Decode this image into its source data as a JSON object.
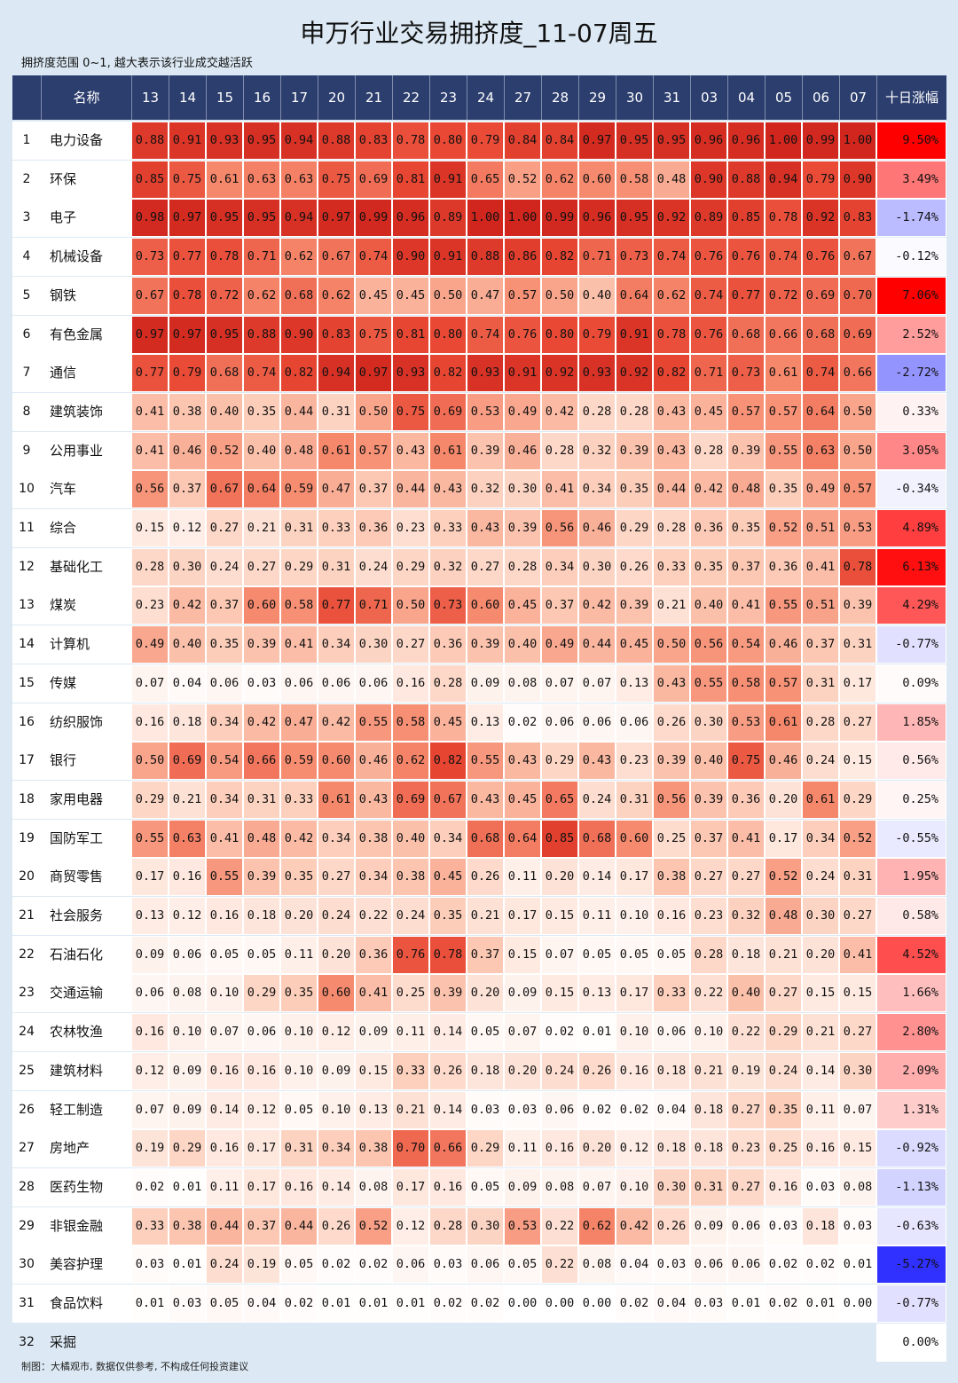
{
  "title": "申万行业交易拥挤度_11-07周五",
  "subtitle": "拥挤度范围 0~1, 越大表示该行业成交越活跃",
  "footer": "制图：大橘观市, 数据仅供参考, 不构成任何投资建议",
  "colors": {
    "header_bg": "#2c3e6e",
    "page_bg": "#dce9f4",
    "heat_high": "#d7301f",
    "heat_low": "#ffffff",
    "change_positive": "#ff0000",
    "change_negative": "#0000ff"
  },
  "chart_data": {
    "type": "heatmap",
    "title": "申万行业交易拥挤度_11-07周五",
    "subtitle": "拥挤度范围 0~1, 越大表示该行业成交越活跃",
    "name_header": "名称",
    "change_header": "十日涨幅",
    "value_range": [
      0,
      1
    ],
    "columns": [
      "13",
      "14",
      "15",
      "16",
      "17",
      "20",
      "21",
      "22",
      "23",
      "24",
      "27",
      "28",
      "29",
      "30",
      "31",
      "03",
      "04",
      "05",
      "06",
      "07"
    ],
    "rows": [
      {
        "rank": "1",
        "name": "电力设备",
        "values": [
          0.88,
          0.91,
          0.93,
          0.95,
          0.94,
          0.88,
          0.83,
          0.78,
          0.8,
          0.79,
          0.84,
          0.84,
          0.97,
          0.95,
          0.95,
          0.96,
          0.96,
          1.0,
          0.99,
          1.0
        ],
        "change": "9.50%"
      },
      {
        "rank": "2",
        "name": "环保",
        "values": [
          0.85,
          0.75,
          0.61,
          0.63,
          0.63,
          0.75,
          0.69,
          0.81,
          0.91,
          0.65,
          0.52,
          0.62,
          0.6,
          0.58,
          0.48,
          0.9,
          0.88,
          0.94,
          0.79,
          0.9
        ],
        "change": "3.49%"
      },
      {
        "rank": "3",
        "name": "电子",
        "values": [
          0.98,
          0.97,
          0.95,
          0.95,
          0.94,
          0.97,
          0.99,
          0.96,
          0.89,
          1.0,
          1.0,
          0.99,
          0.96,
          0.95,
          0.92,
          0.89,
          0.85,
          0.78,
          0.92,
          0.83
        ],
        "change": "-1.74%"
      },
      {
        "rank": "4",
        "name": "机械设备",
        "values": [
          0.73,
          0.77,
          0.78,
          0.71,
          0.62,
          0.67,
          0.74,
          0.9,
          0.91,
          0.88,
          0.86,
          0.82,
          0.71,
          0.73,
          0.74,
          0.76,
          0.76,
          0.74,
          0.76,
          0.67
        ],
        "change": "-0.12%"
      },
      {
        "rank": "5",
        "name": "钢铁",
        "values": [
          0.67,
          0.78,
          0.72,
          0.62,
          0.68,
          0.62,
          0.45,
          0.45,
          0.5,
          0.47,
          0.57,
          0.5,
          0.4,
          0.64,
          0.62,
          0.74,
          0.77,
          0.72,
          0.69,
          0.7
        ],
        "change": "7.06%"
      },
      {
        "rank": "6",
        "name": "有色金属",
        "values": [
          0.97,
          0.97,
          0.95,
          0.88,
          0.9,
          0.83,
          0.75,
          0.81,
          0.8,
          0.74,
          0.76,
          0.8,
          0.79,
          0.91,
          0.78,
          0.76,
          0.68,
          0.66,
          0.68,
          0.69
        ],
        "change": "2.52%"
      },
      {
        "rank": "7",
        "name": "通信",
        "values": [
          0.77,
          0.79,
          0.68,
          0.74,
          0.82,
          0.94,
          0.97,
          0.93,
          0.82,
          0.93,
          0.91,
          0.92,
          0.93,
          0.92,
          0.82,
          0.71,
          0.73,
          0.61,
          0.74,
          0.66
        ],
        "change": "-2.72%"
      },
      {
        "rank": "8",
        "name": "建筑装饰",
        "values": [
          0.41,
          0.38,
          0.4,
          0.35,
          0.44,
          0.31,
          0.5,
          0.75,
          0.69,
          0.53,
          0.49,
          0.42,
          0.28,
          0.28,
          0.43,
          0.45,
          0.57,
          0.57,
          0.64,
          0.5
        ],
        "change": "0.33%"
      },
      {
        "rank": "9",
        "name": "公用事业",
        "values": [
          0.41,
          0.46,
          0.52,
          0.4,
          0.48,
          0.61,
          0.57,
          0.43,
          0.61,
          0.39,
          0.46,
          0.28,
          0.32,
          0.39,
          0.43,
          0.28,
          0.39,
          0.55,
          0.63,
          0.5
        ],
        "change": "3.05%"
      },
      {
        "rank": "10",
        "name": "汽车",
        "values": [
          0.56,
          0.37,
          0.67,
          0.64,
          0.59,
          0.47,
          0.37,
          0.44,
          0.43,
          0.32,
          0.3,
          0.41,
          0.34,
          0.35,
          0.44,
          0.42,
          0.48,
          0.35,
          0.49,
          0.57
        ],
        "change": "-0.34%"
      },
      {
        "rank": "11",
        "name": "综合",
        "values": [
          0.15,
          0.12,
          0.27,
          0.21,
          0.31,
          0.33,
          0.36,
          0.23,
          0.33,
          0.43,
          0.39,
          0.56,
          0.46,
          0.29,
          0.28,
          0.36,
          0.35,
          0.52,
          0.51,
          0.53
        ],
        "change": "4.89%"
      },
      {
        "rank": "12",
        "name": "基础化工",
        "values": [
          0.28,
          0.3,
          0.24,
          0.27,
          0.29,
          0.31,
          0.24,
          0.29,
          0.32,
          0.27,
          0.28,
          0.34,
          0.3,
          0.26,
          0.33,
          0.35,
          0.37,
          0.36,
          0.41,
          0.78
        ],
        "change": "6.13%"
      },
      {
        "rank": "13",
        "name": "煤炭",
        "values": [
          0.23,
          0.42,
          0.37,
          0.6,
          0.58,
          0.77,
          0.71,
          0.5,
          0.73,
          0.6,
          0.45,
          0.37,
          0.42,
          0.39,
          0.21,
          0.4,
          0.41,
          0.55,
          0.51,
          0.39
        ],
        "change": "4.29%"
      },
      {
        "rank": "14",
        "name": "计算机",
        "values": [
          0.49,
          0.4,
          0.35,
          0.39,
          0.41,
          0.34,
          0.3,
          0.27,
          0.36,
          0.39,
          0.4,
          0.49,
          0.44,
          0.45,
          0.5,
          0.56,
          0.54,
          0.46,
          0.37,
          0.31
        ],
        "change": "-0.77%"
      },
      {
        "rank": "15",
        "name": "传媒",
        "values": [
          0.07,
          0.04,
          0.06,
          0.03,
          0.06,
          0.06,
          0.06,
          0.16,
          0.28,
          0.09,
          0.08,
          0.07,
          0.07,
          0.13,
          0.43,
          0.55,
          0.58,
          0.57,
          0.31,
          0.17
        ],
        "change": "0.09%"
      },
      {
        "rank": "16",
        "name": "纺织服饰",
        "values": [
          0.16,
          0.18,
          0.34,
          0.42,
          0.47,
          0.42,
          0.55,
          0.58,
          0.45,
          0.13,
          0.02,
          0.06,
          0.06,
          0.06,
          0.26,
          0.3,
          0.53,
          0.61,
          0.28,
          0.27
        ],
        "change": "1.85%"
      },
      {
        "rank": "17",
        "name": "银行",
        "values": [
          0.5,
          0.69,
          0.54,
          0.66,
          0.59,
          0.6,
          0.46,
          0.62,
          0.82,
          0.55,
          0.43,
          0.29,
          0.43,
          0.23,
          0.39,
          0.4,
          0.75,
          0.46,
          0.24,
          0.15
        ],
        "change": "0.56%"
      },
      {
        "rank": "18",
        "name": "家用电器",
        "values": [
          0.29,
          0.21,
          0.34,
          0.31,
          0.33,
          0.61,
          0.43,
          0.69,
          0.67,
          0.43,
          0.45,
          0.65,
          0.24,
          0.31,
          0.56,
          0.39,
          0.36,
          0.2,
          0.61,
          0.29
        ],
        "change": "0.25%"
      },
      {
        "rank": "19",
        "name": "国防军工",
        "values": [
          0.55,
          0.63,
          0.41,
          0.48,
          0.42,
          0.34,
          0.38,
          0.4,
          0.34,
          0.68,
          0.64,
          0.85,
          0.68,
          0.6,
          0.25,
          0.37,
          0.41,
          0.17,
          0.34,
          0.52
        ],
        "change": "-0.55%"
      },
      {
        "rank": "20",
        "name": "商贸零售",
        "values": [
          0.17,
          0.16,
          0.55,
          0.39,
          0.35,
          0.27,
          0.34,
          0.38,
          0.45,
          0.26,
          0.11,
          0.2,
          0.14,
          0.17,
          0.38,
          0.27,
          0.27,
          0.52,
          0.24,
          0.31
        ],
        "change": "1.95%"
      },
      {
        "rank": "21",
        "name": "社会服务",
        "values": [
          0.13,
          0.12,
          0.16,
          0.18,
          0.2,
          0.24,
          0.22,
          0.24,
          0.35,
          0.21,
          0.17,
          0.15,
          0.11,
          0.1,
          0.16,
          0.23,
          0.32,
          0.48,
          0.3,
          0.27
        ],
        "change": "0.58%"
      },
      {
        "rank": "22",
        "name": "石油石化",
        "values": [
          0.09,
          0.06,
          0.05,
          0.05,
          0.11,
          0.2,
          0.36,
          0.76,
          0.78,
          0.37,
          0.15,
          0.07,
          0.05,
          0.05,
          0.05,
          0.28,
          0.18,
          0.21,
          0.2,
          0.41
        ],
        "change": "4.52%"
      },
      {
        "rank": "23",
        "name": "交通运输",
        "values": [
          0.06,
          0.08,
          0.1,
          0.29,
          0.35,
          0.6,
          0.41,
          0.25,
          0.39,
          0.2,
          0.09,
          0.15,
          0.13,
          0.17,
          0.33,
          0.22,
          0.4,
          0.27,
          0.15,
          0.15
        ],
        "change": "1.66%"
      },
      {
        "rank": "24",
        "name": "农林牧渔",
        "values": [
          0.16,
          0.1,
          0.07,
          0.06,
          0.1,
          0.12,
          0.09,
          0.11,
          0.14,
          0.05,
          0.07,
          0.02,
          0.01,
          0.1,
          0.06,
          0.1,
          0.22,
          0.29,
          0.21,
          0.27
        ],
        "change": "2.80%"
      },
      {
        "rank": "25",
        "name": "建筑材料",
        "values": [
          0.12,
          0.09,
          0.16,
          0.16,
          0.1,
          0.09,
          0.15,
          0.33,
          0.26,
          0.18,
          0.2,
          0.24,
          0.26,
          0.16,
          0.18,
          0.21,
          0.19,
          0.24,
          0.14,
          0.3
        ],
        "change": "2.09%"
      },
      {
        "rank": "26",
        "name": "轻工制造",
        "values": [
          0.07,
          0.09,
          0.14,
          0.12,
          0.05,
          0.1,
          0.13,
          0.21,
          0.14,
          0.03,
          0.03,
          0.06,
          0.02,
          0.02,
          0.04,
          0.18,
          0.27,
          0.35,
          0.11,
          0.07
        ],
        "change": "1.31%"
      },
      {
        "rank": "27",
        "name": "房地产",
        "values": [
          0.19,
          0.29,
          0.16,
          0.17,
          0.31,
          0.34,
          0.38,
          0.7,
          0.66,
          0.29,
          0.11,
          0.16,
          0.2,
          0.12,
          0.18,
          0.18,
          0.23,
          0.25,
          0.16,
          0.15
        ],
        "change": "-0.92%"
      },
      {
        "rank": "28",
        "name": "医药生物",
        "values": [
          0.02,
          0.01,
          0.11,
          0.17,
          0.16,
          0.14,
          0.08,
          0.17,
          0.16,
          0.05,
          0.09,
          0.08,
          0.07,
          0.1,
          0.3,
          0.31,
          0.27,
          0.16,
          0.03,
          0.08
        ],
        "change": "-1.13%"
      },
      {
        "rank": "29",
        "name": "非银金融",
        "values": [
          0.33,
          0.38,
          0.44,
          0.37,
          0.44,
          0.26,
          0.52,
          0.12,
          0.28,
          0.3,
          0.53,
          0.22,
          0.62,
          0.42,
          0.26,
          0.09,
          0.06,
          0.03,
          0.18,
          0.03
        ],
        "change": "-0.63%"
      },
      {
        "rank": "30",
        "name": "美容护理",
        "values": [
          0.03,
          0.01,
          0.24,
          0.19,
          0.05,
          0.02,
          0.02,
          0.06,
          0.03,
          0.06,
          0.05,
          0.22,
          0.08,
          0.04,
          0.03,
          0.06,
          0.06,
          0.02,
          0.02,
          0.01
        ],
        "change": "-5.27%"
      },
      {
        "rank": "31",
        "name": "食品饮料",
        "values": [
          0.01,
          0.03,
          0.05,
          0.04,
          0.02,
          0.01,
          0.01,
          0.01,
          0.02,
          0.02,
          0.0,
          0.0,
          0.0,
          0.02,
          0.04,
          0.03,
          0.01,
          0.02,
          0.01,
          0.0
        ],
        "change": "-0.77%"
      },
      {
        "rank": "32",
        "name": "采掘",
        "values": [],
        "change": "0.00%"
      }
    ]
  }
}
